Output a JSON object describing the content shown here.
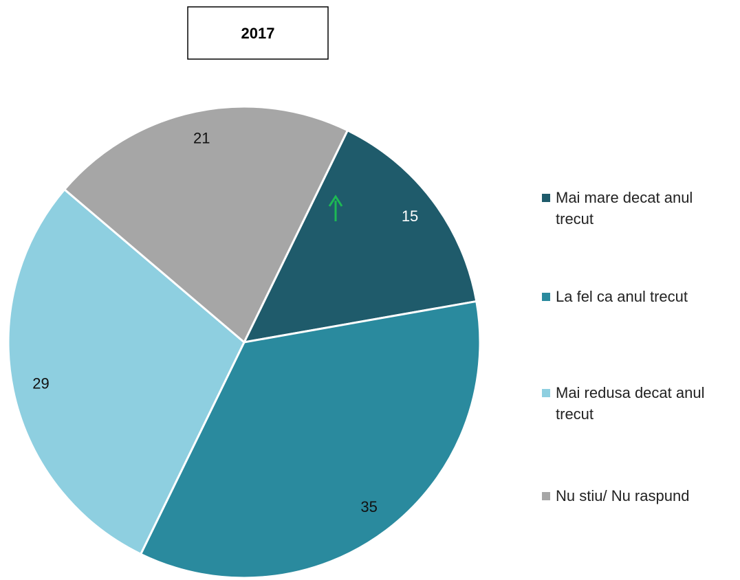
{
  "chart_data": {
    "type": "pie",
    "title": "2017",
    "categories": [
      "Mai mare decat anul trecut",
      "La fel ca anul trecut",
      "Mai redusa decat anul trecut",
      "Nu stiu/ Nu raspund"
    ],
    "values": [
      15,
      35,
      29,
      21
    ],
    "colors": [
      "#1f5b6b",
      "#2a8a9e",
      "#8ecfe0",
      "#a6a6a6"
    ],
    "legend": "right"
  }
}
